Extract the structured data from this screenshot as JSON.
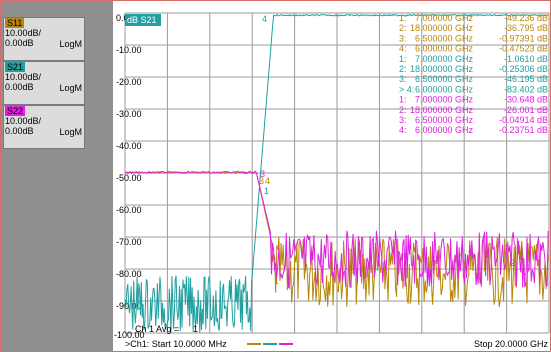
{
  "colors": {
    "s11": "#b8860b",
    "s21": "#20a0a0",
    "s22": "#e020e0",
    "grid": "#9a9a9a",
    "sidebar": "#8f8f8f"
  },
  "traces": [
    {
      "name": "S11",
      "scale": "10.00dB/",
      "ref": "0.00dB",
      "format": "LogM",
      "color": "#b8860b"
    },
    {
      "name": "S21",
      "scale": "10.00dB/",
      "ref": "0.00dB",
      "format": "LogM",
      "color": "#20a0a0"
    },
    {
      "name": "S22",
      "scale": "10.00dB/",
      "ref": "0.00dB",
      "format": "LogM",
      "color": "#e020e0"
    }
  ],
  "active_trace_label": "dB S21",
  "y_axis_labels": [
    "0.00",
    "-10.00",
    "-20.00",
    "-30.00",
    "-40.00",
    "-50.00",
    "-60.00",
    "-70.00",
    "-80.00",
    "-90.00",
    "-100.00"
  ],
  "markers": [
    {
      "id": "1:",
      "freq": "7.000000 GHz",
      "value": "-49.236 dB",
      "color": "#b8860b"
    },
    {
      "id": "2:",
      "freq": "18.000000 GHz",
      "value": "-36.795 dB",
      "color": "#b8860b"
    },
    {
      "id": "3:",
      "freq": "6.500000 GHz",
      "value": "-0.97391 dB",
      "color": "#b8860b"
    },
    {
      "id": "4:",
      "freq": "6.000000 GHz",
      "value": "-0.47523 dB",
      "color": "#b8860b"
    },
    {
      "id": "1:",
      "freq": "7.000000 GHz",
      "value": "-1.0610 dB",
      "color": "#20a0a0"
    },
    {
      "id": "2:",
      "freq": "18.000000 GHz",
      "value": "-0.25306 dB",
      "color": "#20a0a0"
    },
    {
      "id": "3:",
      "freq": "6.500000 GHz",
      "value": "-46.195 dB",
      "color": "#20a0a0"
    },
    {
      "id": "> 4:",
      "freq": "6.000000 GHz",
      "value": "-83.402 dB",
      "color": "#20a0a0"
    },
    {
      "id": "1:",
      "freq": "7.000000 GHz",
      "value": "-30.648 dB",
      "color": "#e020e0"
    },
    {
      "id": "2:",
      "freq": "18.000000 GHz",
      "value": "-26.001 dB",
      "color": "#e020e0"
    },
    {
      "id": "3:",
      "freq": "6.500000 GHz",
      "value": "-0.04914 dB",
      "color": "#e020e0"
    },
    {
      "id": "4:",
      "freq": "6.000000 GHz",
      "value": "-0.23751 dB",
      "color": "#e020e0"
    }
  ],
  "avg_label": "Ch 1 Avg =",
  "avg_value": "1",
  "status": {
    "start": ">Ch1: Start  10.0000 MHz",
    "stop": "Stop  20.0000 GHz"
  },
  "plot_marker_labels": {
    "s11_left": "3",
    "s11_mid": "4",
    "s21_top": "4",
    "s21_low": "1",
    "s22_m1": "1",
    "s22_m2": "2",
    "s22_m3": "3"
  }
}
